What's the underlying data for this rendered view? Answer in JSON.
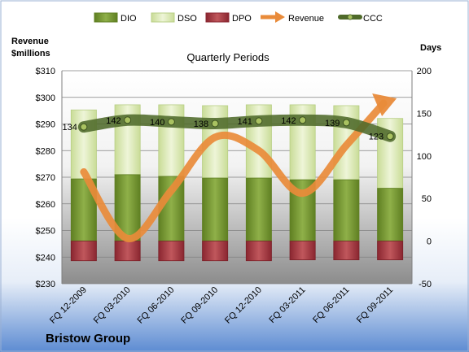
{
  "chart_data": {
    "type": "bar",
    "title": "Quarterly Periods",
    "company": "Bristow Group",
    "left_axis": {
      "label_line1": "Revenue",
      "label_line2": "$millions",
      "range": [
        230,
        310
      ],
      "ticks": [
        "$230",
        "$240",
        "$250",
        "$260",
        "$270",
        "$280",
        "$290",
        "$300",
        "$310"
      ]
    },
    "right_axis": {
      "label": "Days",
      "range": [
        -50,
        200
      ],
      "ticks": [
        "-50",
        "0",
        "50",
        "100",
        "150",
        "200"
      ]
    },
    "categories": [
      "FQ 12-2009",
      "FQ 03-2010",
      "FQ 06-2010",
      "FQ 09-2010",
      "FQ 12-2010",
      "FQ 03-2011",
      "FQ 06-2011",
      "FQ 09-2011"
    ],
    "series": [
      {
        "name": "DIO",
        "kind": "stacked-bar",
        "axis": "right",
        "values": [
          73,
          78,
          76,
          74,
          74,
          72,
          72,
          62
        ]
      },
      {
        "name": "DSO",
        "kind": "stacked-bar",
        "axis": "right",
        "values": [
          81,
          82,
          84,
          85,
          86,
          88,
          87,
          82
        ]
      },
      {
        "name": "DPO",
        "kind": "negative-bar",
        "axis": "right",
        "values": [
          -23,
          -23,
          -23,
          -23,
          -23,
          -22,
          -22,
          -22
        ]
      },
      {
        "name": "Revenue",
        "kind": "line",
        "axis": "left",
        "values": [
          272,
          247,
          265,
          285,
          280,
          264,
          282,
          299
        ]
      },
      {
        "name": "CCC",
        "kind": "line",
        "axis": "right",
        "values": [
          134,
          142,
          140,
          138,
          141,
          142,
          139,
          123
        ]
      }
    ],
    "ccc_labels": [
      "134",
      "142",
      "140",
      "138",
      "141",
      "142",
      "139",
      "123"
    ],
    "legend_position": "top",
    "colors": {
      "DIO": "#7a9a35",
      "DSO": "#dbe9b6",
      "DPO": "#a8353c",
      "Revenue": "#e98b3a",
      "CCC": "#4f6a2a"
    }
  }
}
